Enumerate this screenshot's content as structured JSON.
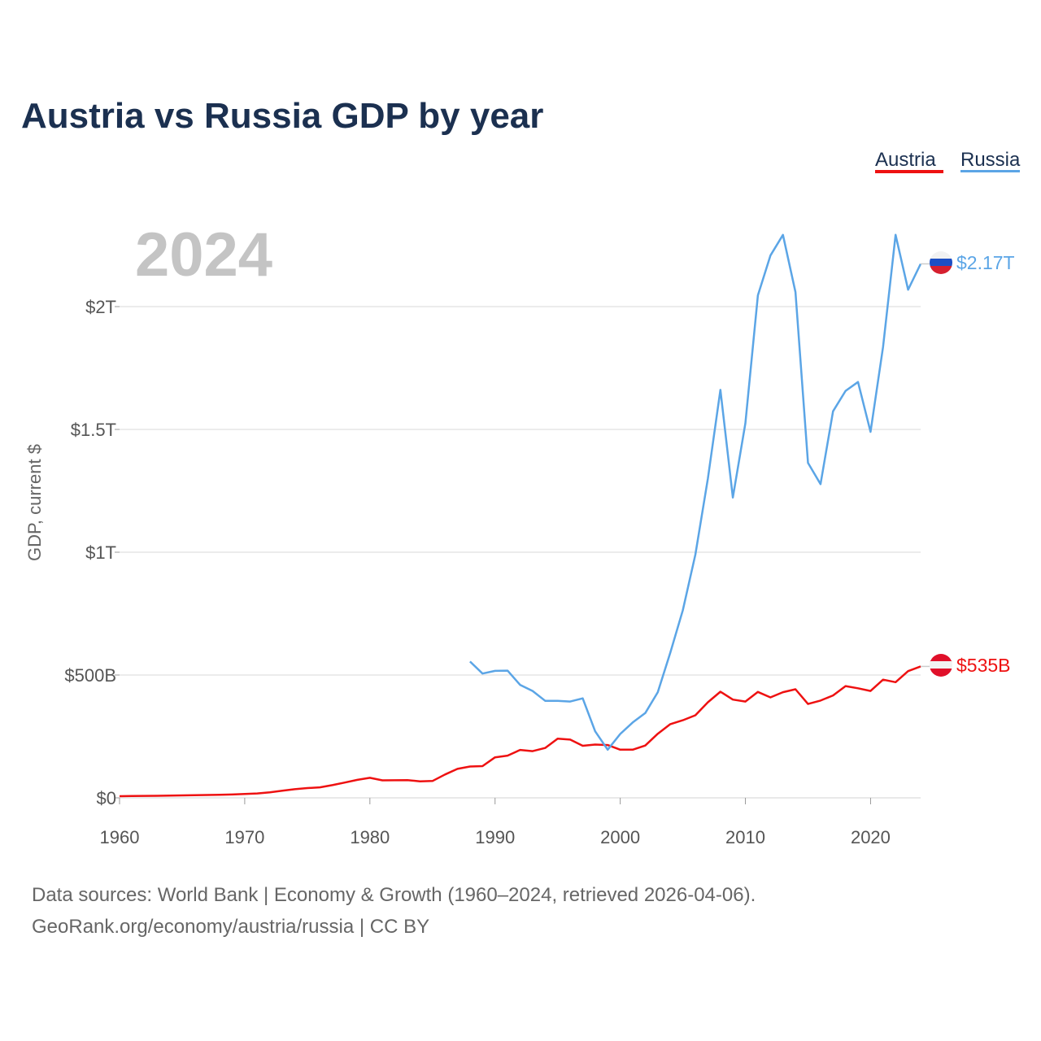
{
  "title": "Austria vs Russia GDP by year",
  "year_label": "2024",
  "legend": {
    "austria": {
      "label": "Austria",
      "color": "#ee1111"
    },
    "russia": {
      "label": "Russia",
      "color": "#5ba5e6"
    }
  },
  "end_labels": {
    "russia": "$2.17T",
    "austria": "$535B"
  },
  "ylabel": "GDP, current $",
  "footer": {
    "line1": "Data sources: World Bank | Economy & Growth (1960–2024, retrieved 2026-04-06).",
    "line2": "GeoRank.org/economy/austria/russia | CC BY"
  },
  "icons": {
    "russia": "russia-flag-icon",
    "austria": "austria-flag-icon"
  },
  "chart_data": {
    "type": "line",
    "title": "Austria vs Russia GDP by year",
    "xlabel": "",
    "ylabel": "GDP, current $",
    "xlim": [
      1960,
      2024
    ],
    "ylim": [
      0,
      2200
    ],
    "units": "billions of current US$",
    "xticks": [
      1960,
      1970,
      1980,
      1990,
      2000,
      2010,
      2020
    ],
    "xtick_labels": [
      "1960",
      "1970",
      "1980",
      "1990",
      "2000",
      "2010",
      "2020"
    ],
    "yticks": [
      0,
      500,
      1000,
      1500,
      2000
    ],
    "ytick_labels": [
      "$0",
      "$500B",
      "$1T",
      "$1.5T",
      "$2T"
    ],
    "grid": true,
    "series": [
      {
        "name": "Austria",
        "color": "#ee1111",
        "x": [
          1960,
          1961,
          1962,
          1963,
          1964,
          1965,
          1966,
          1967,
          1968,
          1969,
          1970,
          1971,
          1972,
          1973,
          1974,
          1975,
          1976,
          1977,
          1978,
          1979,
          1980,
          1981,
          1982,
          1983,
          1984,
          1985,
          1986,
          1987,
          1988,
          1989,
          1990,
          1991,
          1992,
          1993,
          1994,
          1995,
          1996,
          1997,
          1998,
          1999,
          2000,
          2001,
          2002,
          2003,
          2004,
          2005,
          2006,
          2007,
          2008,
          2009,
          2010,
          2011,
          2012,
          2013,
          2014,
          2015,
          2016,
          2017,
          2018,
          2019,
          2020,
          2021,
          2022,
          2023,
          2024
        ],
        "values": [
          6.6,
          7.3,
          7.8,
          8.4,
          9.1,
          9.9,
          10.9,
          11.6,
          12.5,
          13.6,
          15.4,
          17.9,
          22.4,
          29.2,
          35.0,
          39.7,
          42.8,
          51.7,
          62.1,
          73.2,
          81.4,
          71.2,
          71.5,
          72.1,
          67.3,
          68.5,
          95.0,
          118.0,
          127.6,
          129.0,
          165.0,
          172.0,
          195.0,
          190.0,
          203.0,
          241.0,
          237.0,
          212.0,
          217.0,
          215.0,
          196.0,
          196.0,
          213.0,
          261.0,
          300.0,
          316.0,
          336.0,
          389.0,
          432.0,
          400.0,
          392.0,
          431.0,
          409.0,
          430.0,
          442.0,
          382.0,
          396.0,
          417.0,
          455.0,
          446.0,
          435.0,
          481.0,
          471.0,
          516.0,
          535.0
        ]
      },
      {
        "name": "Russia",
        "color": "#5ba5e6",
        "x": [
          1988,
          1989,
          1990,
          1991,
          1992,
          1993,
          1994,
          1995,
          1996,
          1997,
          1998,
          1999,
          2000,
          2001,
          2002,
          2003,
          2004,
          2005,
          2006,
          2007,
          2008,
          2009,
          2010,
          2011,
          2012,
          2013,
          2014,
          2015,
          2016,
          2017,
          2018,
          2019,
          2020,
          2021,
          2022,
          2023,
          2024
        ],
        "values": [
          555,
          506,
          517,
          518,
          460,
          435,
          395,
          395,
          392,
          405,
          271,
          196,
          260,
          307,
          345,
          430,
          591,
          764,
          990,
          1300,
          1661,
          1223,
          1525,
          2046,
          2208,
          2292,
          2059,
          1364,
          1277,
          1574,
          1657,
          1693,
          1490,
          1836,
          2292,
          2069,
          2174
        ]
      }
    ]
  }
}
